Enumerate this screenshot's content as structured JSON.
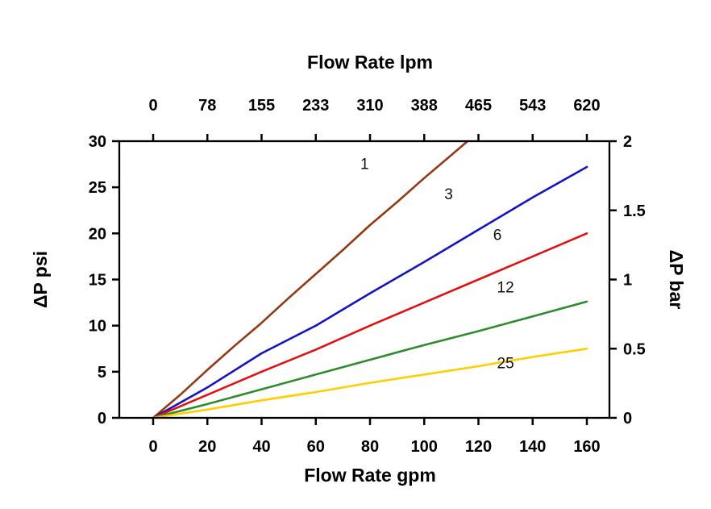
{
  "chart_data": {
    "type": "line",
    "title": "",
    "grid": false,
    "legend": "inline-labels-on-curves",
    "axes": {
      "top": {
        "label": "Flow Rate lpm",
        "ticks": [
          0,
          78,
          155,
          233,
          310,
          388,
          465,
          543,
          620
        ]
      },
      "bottom": {
        "label": "Flow Rate gpm",
        "ticks": [
          0,
          20,
          40,
          60,
          80,
          100,
          120,
          140,
          160
        ],
        "range": [
          0,
          160
        ]
      },
      "left": {
        "label": "ΔP psi",
        "ticks": [
          0,
          5,
          10,
          15,
          20,
          25,
          30
        ],
        "range": [
          0,
          30
        ]
      },
      "right": {
        "label": "ΔP bar",
        "ticks": [
          0,
          0.5,
          1,
          1.5,
          2
        ],
        "range": [
          0,
          2
        ]
      }
    },
    "series": [
      {
        "name": "1",
        "color": "#93391679",
        "color_hex": "#933916",
        "points": [
          [
            0,
            0
          ],
          [
            10,
            2.5
          ],
          [
            20,
            5.2
          ],
          [
            30,
            7.8
          ],
          [
            40,
            10.3
          ],
          [
            50,
            13.0
          ],
          [
            60,
            15.6
          ],
          [
            70,
            18.2
          ],
          [
            80,
            20.9
          ],
          [
            90,
            23.4
          ],
          [
            100,
            26.0
          ],
          [
            110,
            28.5
          ],
          [
            116,
            30
          ]
        ],
        "label_at": [
          78,
          27.0
        ]
      },
      {
        "name": "3",
        "color": "#1414C0",
        "color_hex": "#1414C0",
        "points": [
          [
            0,
            0
          ],
          [
            20,
            3.3
          ],
          [
            40,
            7.0
          ],
          [
            60,
            10.0
          ],
          [
            80,
            13.5
          ],
          [
            100,
            16.9
          ],
          [
            120,
            20.4
          ],
          [
            140,
            23.9
          ],
          [
            160,
            27.2
          ]
        ],
        "label_at": [
          109,
          23.7
        ]
      },
      {
        "name": "6",
        "color": "#E11212",
        "color_hex": "#E11212",
        "points": [
          [
            0,
            0
          ],
          [
            20,
            2.5
          ],
          [
            40,
            5.0
          ],
          [
            60,
            7.4
          ],
          [
            80,
            10.0
          ],
          [
            100,
            12.5
          ],
          [
            120,
            15.0
          ],
          [
            140,
            17.5
          ],
          [
            160,
            20.0
          ]
        ],
        "label_at": [
          127,
          19.3
        ]
      },
      {
        "name": "12",
        "color": "#2E8B2E",
        "color_hex": "#2E8B2E",
        "points": [
          [
            0,
            0
          ],
          [
            20,
            1.5
          ],
          [
            40,
            3.1
          ],
          [
            60,
            4.7
          ],
          [
            80,
            6.3
          ],
          [
            100,
            7.9
          ],
          [
            120,
            9.4
          ],
          [
            140,
            11.0
          ],
          [
            160,
            12.6
          ]
        ],
        "label_at": [
          130,
          13.6
        ]
      },
      {
        "name": "25",
        "color": "#FFCE00",
        "color_hex": "#FFCE00",
        "points": [
          [
            0,
            0
          ],
          [
            20,
            0.9
          ],
          [
            40,
            1.9
          ],
          [
            60,
            2.8
          ],
          [
            80,
            3.8
          ],
          [
            100,
            4.7
          ],
          [
            120,
            5.6
          ],
          [
            140,
            6.6
          ],
          [
            160,
            7.5
          ]
        ],
        "label_at": [
          130,
          5.4
        ]
      }
    ]
  }
}
